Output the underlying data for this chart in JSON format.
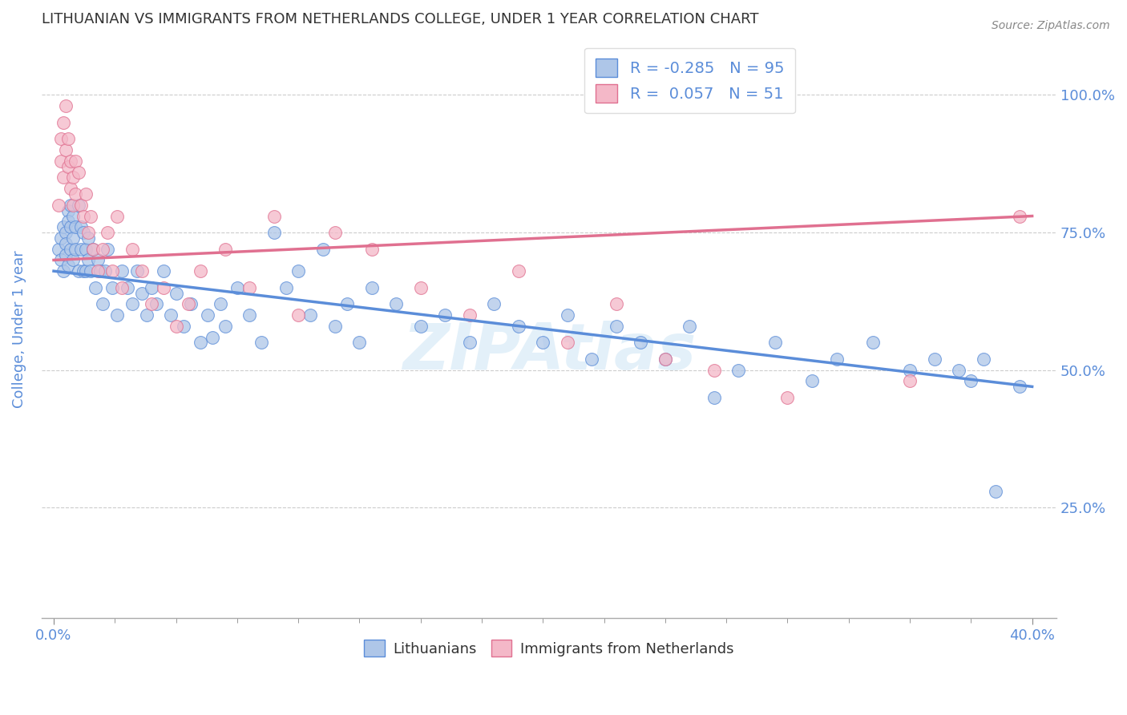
{
  "title": "LITHUANIAN VS IMMIGRANTS FROM NETHERLANDS COLLEGE, UNDER 1 YEAR CORRELATION CHART",
  "source": "Source: ZipAtlas.com",
  "ylabel": "College, Under 1 year",
  "x_tick_labels_shown": [
    "0.0%",
    "40.0%"
  ],
  "x_tick_positions_shown": [
    0.0,
    0.4
  ],
  "x_minor_ticks": [
    0.025,
    0.05,
    0.075,
    0.1,
    0.125,
    0.15,
    0.175,
    0.2,
    0.225,
    0.25,
    0.275,
    0.3,
    0.325,
    0.35,
    0.375
  ],
  "y_tick_labels": [
    "25.0%",
    "50.0%",
    "75.0%",
    "100.0%"
  ],
  "y_tick_positions": [
    0.25,
    0.5,
    0.75,
    1.0
  ],
  "xlim": [
    -0.005,
    0.41
  ],
  "ylim": [
    0.05,
    1.1
  ],
  "blue_R": -0.285,
  "blue_N": 95,
  "pink_R": 0.057,
  "pink_N": 51,
  "blue_color": "#aec6e8",
  "pink_color": "#f4b8c8",
  "blue_line_color": "#5b8dd9",
  "pink_line_color": "#e07090",
  "title_color": "#333333",
  "axis_label_color": "#5b8dd9",
  "legend_text_color": "#5b8dd9",
  "watermark": "ZIPAtlas",
  "blue_scatter_x": [
    0.002,
    0.003,
    0.003,
    0.004,
    0.004,
    0.005,
    0.005,
    0.005,
    0.006,
    0.006,
    0.006,
    0.007,
    0.007,
    0.007,
    0.008,
    0.008,
    0.008,
    0.009,
    0.009,
    0.01,
    0.01,
    0.011,
    0.011,
    0.012,
    0.012,
    0.013,
    0.013,
    0.014,
    0.014,
    0.015,
    0.016,
    0.017,
    0.018,
    0.019,
    0.02,
    0.021,
    0.022,
    0.024,
    0.026,
    0.028,
    0.03,
    0.032,
    0.034,
    0.036,
    0.038,
    0.04,
    0.042,
    0.045,
    0.048,
    0.05,
    0.053,
    0.056,
    0.06,
    0.063,
    0.065,
    0.068,
    0.07,
    0.075,
    0.08,
    0.085,
    0.09,
    0.095,
    0.1,
    0.105,
    0.11,
    0.115,
    0.12,
    0.125,
    0.13,
    0.14,
    0.15,
    0.16,
    0.17,
    0.18,
    0.19,
    0.2,
    0.21,
    0.22,
    0.23,
    0.24,
    0.25,
    0.26,
    0.27,
    0.28,
    0.295,
    0.31,
    0.32,
    0.335,
    0.35,
    0.36,
    0.37,
    0.375,
    0.38,
    0.385,
    0.395
  ],
  "blue_scatter_y": [
    0.72,
    0.74,
    0.7,
    0.68,
    0.76,
    0.75,
    0.73,
    0.71,
    0.79,
    0.77,
    0.69,
    0.8,
    0.76,
    0.72,
    0.78,
    0.74,
    0.7,
    0.76,
    0.72,
    0.8,
    0.68,
    0.76,
    0.72,
    0.68,
    0.75,
    0.72,
    0.68,
    0.74,
    0.7,
    0.68,
    0.72,
    0.65,
    0.7,
    0.68,
    0.62,
    0.68,
    0.72,
    0.65,
    0.6,
    0.68,
    0.65,
    0.62,
    0.68,
    0.64,
    0.6,
    0.65,
    0.62,
    0.68,
    0.6,
    0.64,
    0.58,
    0.62,
    0.55,
    0.6,
    0.56,
    0.62,
    0.58,
    0.65,
    0.6,
    0.55,
    0.75,
    0.65,
    0.68,
    0.6,
    0.72,
    0.58,
    0.62,
    0.55,
    0.65,
    0.62,
    0.58,
    0.6,
    0.55,
    0.62,
    0.58,
    0.55,
    0.6,
    0.52,
    0.58,
    0.55,
    0.52,
    0.58,
    0.45,
    0.5,
    0.55,
    0.48,
    0.52,
    0.55,
    0.5,
    0.52,
    0.5,
    0.48,
    0.52,
    0.28,
    0.47
  ],
  "pink_scatter_x": [
    0.002,
    0.003,
    0.003,
    0.004,
    0.004,
    0.005,
    0.005,
    0.006,
    0.006,
    0.007,
    0.007,
    0.008,
    0.008,
    0.009,
    0.009,
    0.01,
    0.011,
    0.012,
    0.013,
    0.014,
    0.015,
    0.016,
    0.018,
    0.02,
    0.022,
    0.024,
    0.026,
    0.028,
    0.032,
    0.036,
    0.04,
    0.045,
    0.05,
    0.055,
    0.06,
    0.07,
    0.08,
    0.09,
    0.1,
    0.115,
    0.13,
    0.15,
    0.17,
    0.19,
    0.21,
    0.23,
    0.25,
    0.27,
    0.3,
    0.35,
    0.395
  ],
  "pink_scatter_y": [
    0.8,
    0.88,
    0.92,
    0.85,
    0.95,
    0.98,
    0.9,
    0.92,
    0.87,
    0.88,
    0.83,
    0.85,
    0.8,
    0.88,
    0.82,
    0.86,
    0.8,
    0.78,
    0.82,
    0.75,
    0.78,
    0.72,
    0.68,
    0.72,
    0.75,
    0.68,
    0.78,
    0.65,
    0.72,
    0.68,
    0.62,
    0.65,
    0.58,
    0.62,
    0.68,
    0.72,
    0.65,
    0.78,
    0.6,
    0.75,
    0.72,
    0.65,
    0.6,
    0.68,
    0.55,
    0.62,
    0.52,
    0.5,
    0.45,
    0.48,
    0.78
  ],
  "blue_trendline_x": [
    0.0,
    0.4
  ],
  "blue_trendline_y": [
    0.68,
    0.47
  ],
  "pink_trendline_x": [
    0.0,
    0.4
  ],
  "pink_trendline_y": [
    0.7,
    0.78
  ]
}
